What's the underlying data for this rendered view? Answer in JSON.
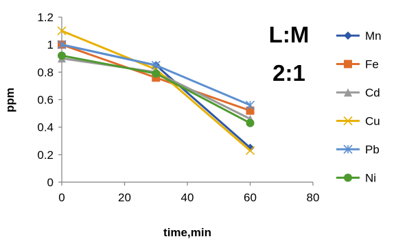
{
  "chart_data": {
    "type": "line",
    "title": "",
    "xlabel": "time,min",
    "ylabel": "ppm",
    "x": [
      0,
      30,
      60
    ],
    "xlim": [
      0,
      80
    ],
    "ylim": [
      0,
      1.2
    ],
    "xticks": [
      "0",
      "20",
      "40",
      "60",
      "80"
    ],
    "yticks": [
      "0",
      "0.2",
      "0.4",
      "0.6",
      "0.8",
      "1",
      "1.2"
    ],
    "grid": false,
    "legend_position": "right",
    "annotations": [
      "L:M",
      "2:1"
    ],
    "series": [
      {
        "name": "Mn",
        "values": [
          1.0,
          0.85,
          0.25
        ],
        "color": "#2E57A7",
        "marker": "diamond"
      },
      {
        "name": "Fe",
        "values": [
          1.0,
          0.76,
          0.52
        ],
        "color": "#E06C2A",
        "marker": "square"
      },
      {
        "name": "Cd",
        "values": [
          0.9,
          0.8,
          0.46
        ],
        "color": "#999999",
        "marker": "triangle"
      },
      {
        "name": "Cu",
        "values": [
          1.1,
          0.82,
          0.23
        ],
        "color": "#E8B000",
        "marker": "x"
      },
      {
        "name": "Pb",
        "values": [
          1.0,
          0.85,
          0.56
        ],
        "color": "#5B8FD0",
        "marker": "star"
      },
      {
        "name": "Ni",
        "values": [
          0.92,
          0.79,
          0.43
        ],
        "color": "#4E9A2F",
        "marker": "circle"
      }
    ]
  }
}
